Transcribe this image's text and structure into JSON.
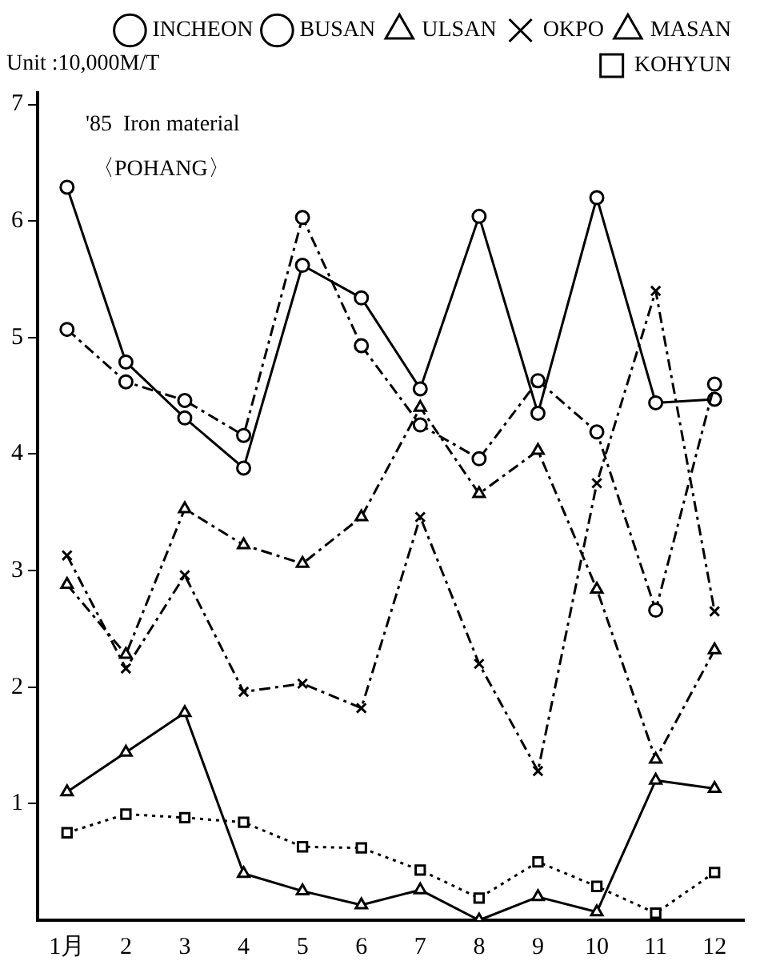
{
  "chart_data": {
    "type": "line",
    "ylabel": "Unit :10,000M/T",
    "annotations": [
      "'85  Iron material",
      "〈POHANG〉"
    ],
    "categories": [
      "1月",
      "2",
      "3",
      "4",
      "5",
      "6",
      "7",
      "8",
      "9",
      "10",
      "11",
      "12"
    ],
    "series": [
      {
        "name": "INCHEON",
        "color": "#000000",
        "marker": "circle",
        "line_style": "dashed",
        "values": [
          5.07,
          4.62,
          4.46,
          4.16,
          6.03,
          4.93,
          4.25,
          3.96,
          4.63,
          4.19,
          2.66,
          4.6
        ]
      },
      {
        "name": "BUSAN",
        "color": "#000000",
        "marker": "circle",
        "line_style": "solid",
        "values": [
          6.29,
          4.79,
          4.31,
          3.88,
          5.62,
          5.34,
          4.56,
          6.04,
          4.35,
          6.2,
          4.44,
          4.47
        ]
      },
      {
        "name": "ULSAN",
        "color": "#000000",
        "marker": "triangle",
        "line_style": "dashed",
        "values": [
          2.88,
          2.28,
          3.53,
          3.22,
          3.06,
          3.46,
          4.4,
          3.66,
          4.03,
          2.84,
          1.38,
          2.32
        ]
      },
      {
        "name": "OKPO",
        "color": "#000000",
        "marker": "cross",
        "line_style": "dashed",
        "values": [
          3.13,
          2.16,
          2.96,
          1.96,
          2.03,
          1.82,
          3.46,
          2.2,
          1.28,
          3.75,
          5.4,
          2.65
        ]
      },
      {
        "name": "MASAN",
        "color": "#000000",
        "marker": "triangle",
        "line_style": "solid",
        "values": [
          1.1,
          1.44,
          1.78,
          0.4,
          0.25,
          0.13,
          0.26,
          0,
          0.2,
          0.07,
          1.2,
          1.13
        ]
      },
      {
        "name": "KOHYUN",
        "color": "#000000",
        "marker": "square",
        "line_style": "dotted",
        "values": [
          0.75,
          0.91,
          0.88,
          0.84,
          0.63,
          0.62,
          0.43,
          0.19,
          0.5,
          0.29,
          0.06,
          0.41
        ]
      }
    ],
    "ylim": [
      0,
      7.1
    ],
    "yticks": [
      1,
      2,
      3,
      4,
      5,
      6,
      7
    ],
    "grid": false,
    "legend": "top right"
  }
}
